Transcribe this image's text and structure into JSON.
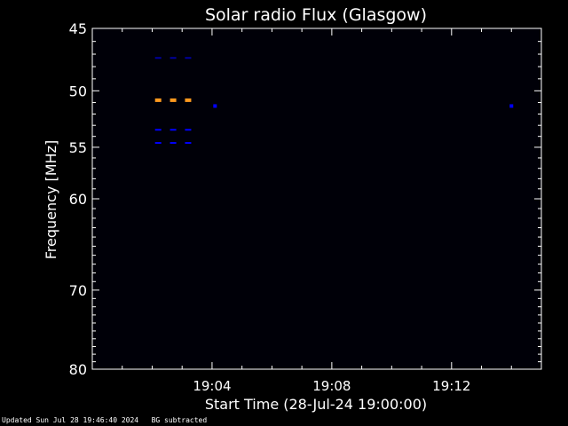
{
  "chart_data": {
    "type": "heatmap",
    "title": "Solar radio Flux (Glasgow)",
    "xlabel": "Start Time (28-Jul-24 19:00:00)",
    "ylabel": "Frequency [MHz]",
    "x_ticks": [
      "19:04",
      "19:08",
      "19:12"
    ],
    "y_ticks": [
      "45",
      "50",
      "55",
      "60",
      "70",
      "80"
    ],
    "y_scale": "log",
    "y_range": [
      45,
      80
    ],
    "x_range_minutes": [
      0,
      15
    ],
    "grid": false,
    "x_tick_minutes": [
      4,
      8,
      12
    ],
    "y_tick_values": [
      45,
      50,
      55,
      60,
      70,
      80
    ],
    "hot_pixels": [
      {
        "t": 2.2,
        "f": 47.3,
        "color": "#0000a0",
        "dash": true
      },
      {
        "t": 2.7,
        "f": 47.3,
        "color": "#0000a0",
        "dash": true
      },
      {
        "t": 3.2,
        "f": 47.3,
        "color": "#0000a0",
        "dash": true
      },
      {
        "t": 2.2,
        "f": 50.8,
        "color": "#ff9a1f",
        "dash": false
      },
      {
        "t": 2.7,
        "f": 50.8,
        "color": "#ff9a1f",
        "dash": false
      },
      {
        "t": 3.2,
        "f": 50.8,
        "color": "#ff9a1f",
        "dash": false
      },
      {
        "t": 2.2,
        "f": 53.4,
        "color": "#0000ff",
        "dash": true
      },
      {
        "t": 2.7,
        "f": 53.4,
        "color": "#0000ff",
        "dash": true
      },
      {
        "t": 3.2,
        "f": 53.4,
        "color": "#0000ff",
        "dash": true
      },
      {
        "t": 2.2,
        "f": 54.6,
        "color": "#0000ff",
        "dash": true
      },
      {
        "t": 2.7,
        "f": 54.6,
        "color": "#0000ff",
        "dash": true
      },
      {
        "t": 3.2,
        "f": 54.6,
        "color": "#0000ff",
        "dash": true
      },
      {
        "t": 4.1,
        "f": 51.3,
        "color": "#0000ff",
        "dash": false
      },
      {
        "t": 14.0,
        "f": 51.3,
        "color": "#0000ff",
        "dash": false
      }
    ],
    "background_color": "#000008",
    "text_color": "#ffffff"
  },
  "footer": {
    "updated": "Updated Sun Jul 28 19:46:40 2024",
    "note": "BG subtracted"
  }
}
